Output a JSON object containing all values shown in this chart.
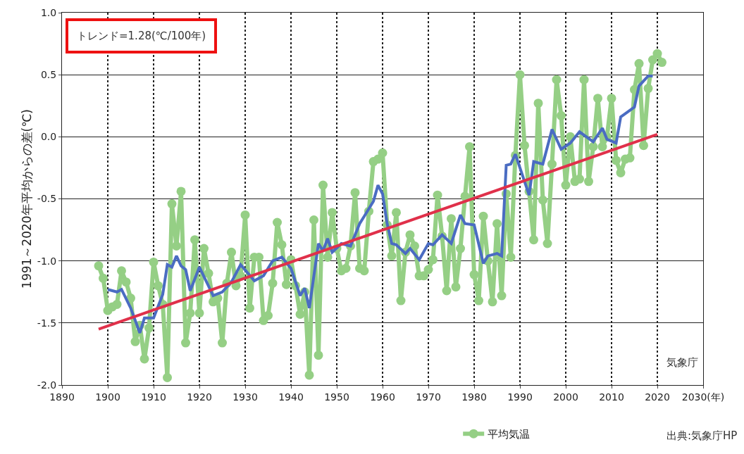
{
  "chart_data": {
    "type": "line",
    "ylabel": "1991～2020年平均からの差(℃)",
    "x": [
      1898,
      1899,
      1900,
      1901,
      1902,
      1903,
      1904,
      1905,
      1906,
      1907,
      1908,
      1909,
      1910,
      1911,
      1912,
      1913,
      1914,
      1915,
      1916,
      1917,
      1918,
      1919,
      1920,
      1921,
      1922,
      1923,
      1924,
      1925,
      1926,
      1927,
      1928,
      1929,
      1930,
      1931,
      1932,
      1933,
      1934,
      1935,
      1936,
      1937,
      1938,
      1939,
      1940,
      1941,
      1942,
      1943,
      1944,
      1945,
      1946,
      1947,
      1948,
      1949,
      1950,
      1951,
      1952,
      1953,
      1954,
      1955,
      1956,
      1957,
      1958,
      1959,
      1960,
      1961,
      1962,
      1963,
      1964,
      1965,
      1966,
      1967,
      1968,
      1969,
      1970,
      1971,
      1972,
      1973,
      1974,
      1975,
      1976,
      1977,
      1978,
      1979,
      1980,
      1981,
      1982,
      1983,
      1984,
      1985,
      1986,
      1987,
      1988,
      1989,
      1990,
      1991,
      1992,
      1993,
      1994,
      1995,
      1996,
      1997,
      1998,
      1999,
      2000,
      2001,
      2002,
      2003,
      2004,
      2005,
      2006,
      2007,
      2008,
      2009,
      2010,
      2011,
      2012,
      2013,
      2014,
      2015,
      2016,
      2017,
      2018,
      2019,
      2020,
      2021
    ],
    "series": [
      {
        "name": "平均気温",
        "color": "#95cf85",
        "marker": "circle",
        "values": [
          -1.04,
          -1.14,
          -1.4,
          -1.37,
          -1.35,
          -1.08,
          -1.17,
          -1.3,
          -1.65,
          -1.52,
          -1.79,
          -1.54,
          -1.01,
          -1.2,
          -1.35,
          -1.94,
          -0.54,
          -0.88,
          -0.44,
          -1.66,
          -1.42,
          -0.83,
          -1.42,
          -0.9,
          -1.1,
          -1.33,
          -1.3,
          -1.66,
          -1.18,
          -0.93,
          -1.2,
          -1.12,
          -0.63,
          -1.38,
          -0.97,
          -0.97,
          -1.48,
          -1.44,
          -1.18,
          -0.69,
          -0.87,
          -1.19,
          -0.99,
          -1.2,
          -1.43,
          -1.25,
          -1.92,
          -0.67,
          -1.76,
          -0.39,
          -0.97,
          -0.61,
          -0.9,
          -1.08,
          -1.06,
          -0.88,
          -0.45,
          -1.06,
          -1.08,
          -0.6,
          -0.2,
          -0.18,
          -0.13,
          -0.71,
          -0.96,
          -0.61,
          -1.32,
          -0.93,
          -0.79,
          -0.88,
          -1.12,
          -1.12,
          -1.07,
          -0.99,
          -0.47,
          -0.8,
          -1.24,
          -0.66,
          -1.21,
          -0.9,
          -0.48,
          -0.08,
          -1.11,
          -1.32,
          -0.64,
          -1.0,
          -1.33,
          -0.7,
          -1.28,
          -0.46,
          -0.97,
          -0.15,
          0.5,
          -0.07,
          -0.44,
          -0.83,
          0.27,
          -0.51,
          -0.86,
          -0.22,
          0.46,
          0.17,
          -0.39,
          0.0,
          -0.36,
          -0.34,
          0.46,
          -0.36,
          -0.08,
          0.31,
          -0.08,
          0.0,
          0.31,
          -0.19,
          -0.29,
          -0.18,
          -0.17,
          0.38,
          0.59,
          -0.07,
          0.39,
          0.62,
          0.67,
          0.6
        ]
      },
      {
        "color": "#4a6cc2",
        "marker": "none",
        "x": [
          1900,
          1902,
          1903,
          1905,
          1907,
          1908,
          1910,
          1912,
          1913,
          1914,
          1915,
          1916,
          1917,
          1918,
          1920,
          1923,
          1925,
          1927,
          1929,
          1932,
          1934,
          1936,
          1938,
          1940,
          1942,
          1943,
          1944,
          1946,
          1947,
          1948,
          1949,
          1951,
          1953,
          1955,
          1956,
          1958,
          1959,
          1960,
          1961,
          1962,
          1963,
          1965,
          1966,
          1968,
          1970,
          1971,
          1973,
          1975,
          1977,
          1978,
          1980,
          1982,
          1983,
          1985,
          1986,
          1987,
          1988,
          1989,
          1990,
          1992,
          1993,
          1995,
          1997,
          1999,
          2001,
          2003,
          2006,
          2008,
          2009,
          2011,
          2012,
          2015,
          2016,
          2018,
          2019
        ],
        "values": [
          -1.23,
          -1.25,
          -1.23,
          -1.38,
          -1.58,
          -1.46,
          -1.46,
          -1.27,
          -1.03,
          -1.05,
          -0.96,
          -1.04,
          -1.07,
          -1.24,
          -1.05,
          -1.28,
          -1.25,
          -1.17,
          -1.03,
          -1.16,
          -1.12,
          -1.0,
          -0.97,
          -1.06,
          -1.28,
          -1.22,
          -1.38,
          -0.86,
          -0.92,
          -0.82,
          -0.93,
          -0.86,
          -0.88,
          -0.7,
          -0.64,
          -0.52,
          -0.39,
          -0.46,
          -0.7,
          -0.86,
          -0.87,
          -0.94,
          -0.9,
          -0.99,
          -0.86,
          -0.87,
          -0.79,
          -0.86,
          -0.63,
          -0.7,
          -0.71,
          -1.02,
          -0.96,
          -0.94,
          -0.96,
          -0.23,
          -0.22,
          -0.14,
          -0.25,
          -0.47,
          -0.2,
          -0.22,
          0.06,
          -0.1,
          -0.05,
          0.04,
          -0.04,
          0.07,
          -0.02,
          -0.05,
          0.16,
          0.24,
          0.41,
          0.49,
          0.49
        ]
      },
      {
        "color": "#e0304a",
        "marker": "none",
        "x": [
          1898,
          2020
        ],
        "values": [
          -1.55,
          0.02
        ]
      }
    ],
    "xlim": [
      1890,
      2030
    ],
    "xticks": [
      1890,
      1900,
      1910,
      1920,
      1930,
      1940,
      1950,
      1960,
      1970,
      1980,
      1990,
      2000,
      2010,
      2020,
      {
        "value": 2030,
        "label": "2030(年)"
      }
    ],
    "ylim": [
      -2.0,
      1.0
    ],
    "yticks": [
      {
        "value": -2,
        "label": "-2.0"
      },
      {
        "value": -1.5,
        "label": "-1.5"
      },
      {
        "value": -1,
        "label": "-1.0"
      },
      {
        "value": -0.5,
        "label": "-0.5"
      },
      {
        "value": 0,
        "label": "0.0"
      },
      {
        "value": 0.5,
        "label": "0.5"
      },
      {
        "value": 1,
        "label": "1.0"
      }
    ],
    "grid": true,
    "legend": "bottom",
    "line_style": "solid",
    "annotations": [
      "トレンド=1.28(℃/100年)",
      "気象庁",
      "出典:気象庁HP"
    ]
  }
}
